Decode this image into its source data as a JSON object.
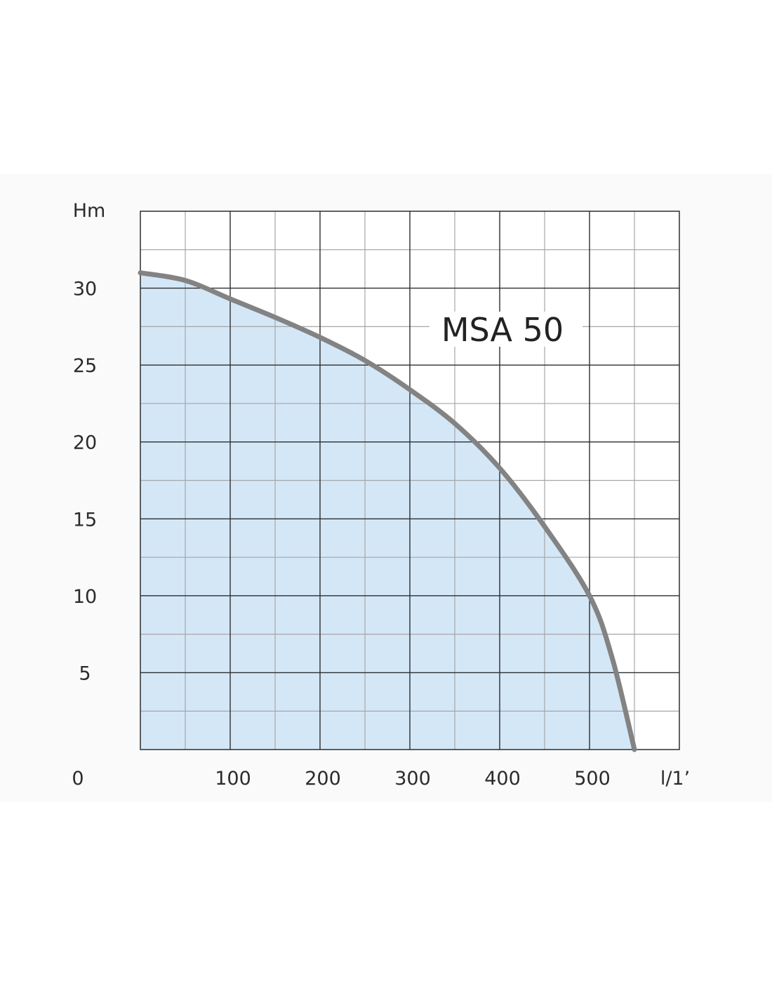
{
  "chart_data": {
    "type": "area",
    "title": "",
    "ylabel": "Hm",
    "xlabel": "l/1’",
    "xlim": [
      0,
      600
    ],
    "ylim": [
      0,
      35
    ],
    "x_major_ticks": [
      100,
      200,
      300,
      400,
      500
    ],
    "x_minor_step": 50,
    "y_major_ticks": [
      5,
      10,
      15,
      20,
      25,
      30
    ],
    "y_minor_step": 2.5,
    "origin_label": "0",
    "grid": true,
    "series": [
      {
        "name": "MSA 50",
        "x": [
          0,
          50,
          100,
          150,
          200,
          250,
          300,
          350,
          400,
          450,
          500,
          525,
          550
        ],
        "y": [
          31,
          30.5,
          29.3,
          28.1,
          26.8,
          25.3,
          23.4,
          21.2,
          18.3,
          14.5,
          10,
          6,
          0
        ]
      }
    ],
    "colors": {
      "fill": "#d4e7f7",
      "curve": "#838383",
      "grid_major": "#2e2e2e",
      "grid_minor": "#a6a6a6",
      "plot_background": "#ffffff",
      "panel_background": "#fafafa"
    }
  }
}
